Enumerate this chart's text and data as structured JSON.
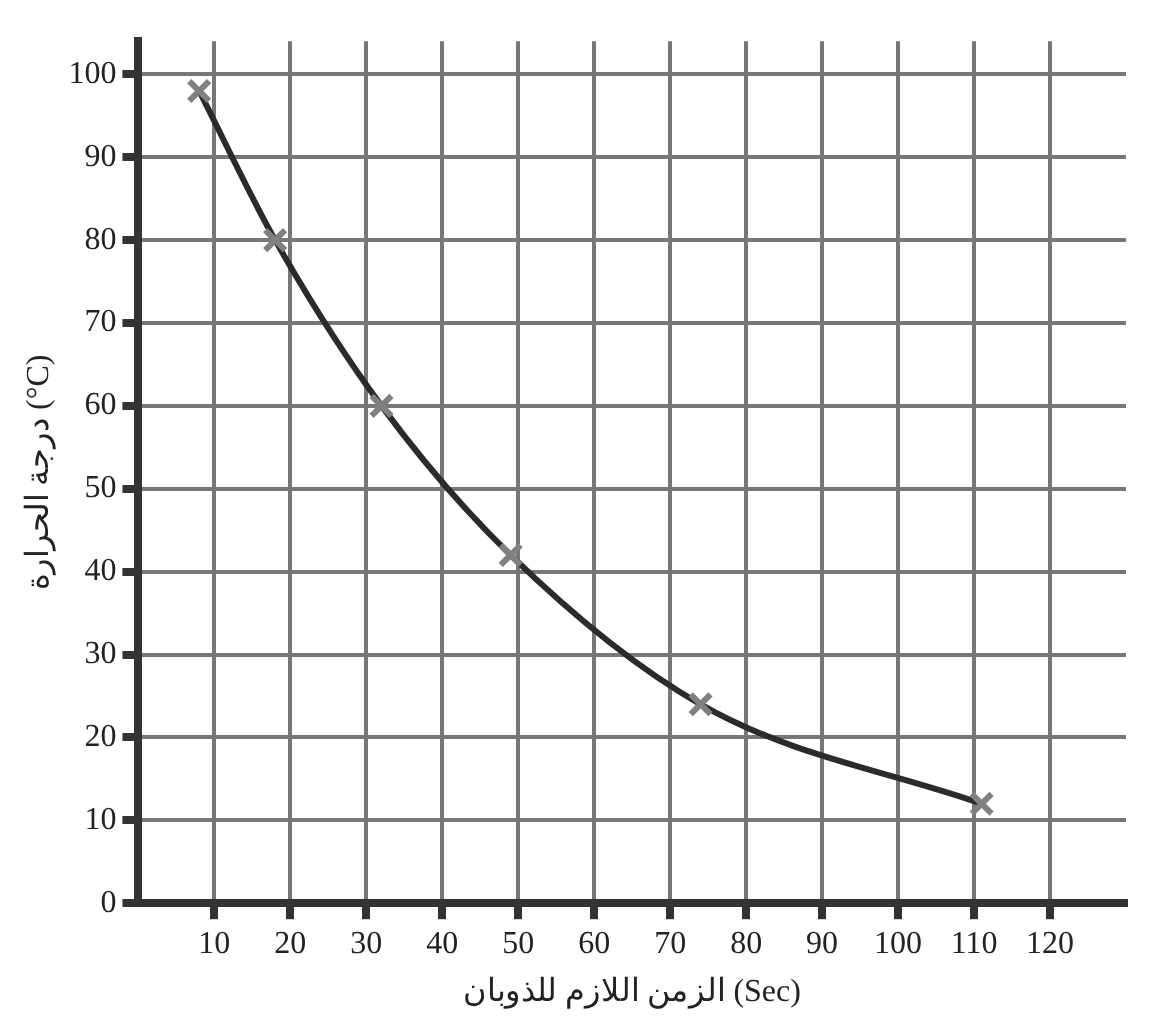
{
  "chart_data": {
    "type": "line",
    "xlabel": "الزمن اللازم للذوبان (Sec)",
    "ylabel": "درجة الحرارة (°C)",
    "x": [
      8,
      18,
      32,
      49,
      74,
      111
    ],
    "series": [
      {
        "color": "#2b2b2b",
        "values": [
          98,
          80,
          60,
          42,
          24,
          12
        ]
      }
    ],
    "xlim": [
      0,
      130
    ],
    "xticks": [
      10,
      20,
      30,
      40,
      50,
      60,
      70,
      80,
      90,
      100,
      110,
      120
    ],
    "ylim": [
      0,
      104
    ],
    "yticks": [
      0,
      10,
      20,
      30,
      40,
      50,
      60,
      70,
      80,
      90,
      100
    ],
    "grid": true,
    "legend": false,
    "marker": "cross",
    "line_style": "solid"
  }
}
